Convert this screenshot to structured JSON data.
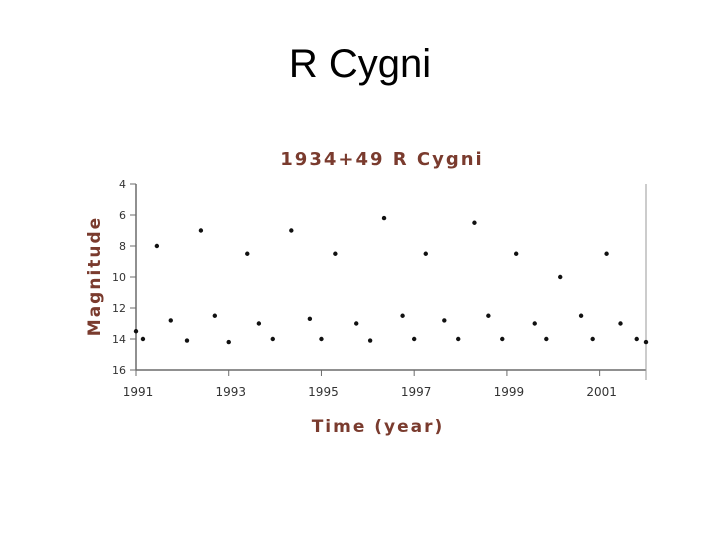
{
  "slide": {
    "title": "R Cygni"
  },
  "colors": {
    "text_accent": "#7a3b2e",
    "axis": "#6b6b6b",
    "data": "#111111"
  },
  "chart_data": {
    "type": "scatter",
    "title": "1934+49 R Cygni",
    "xlabel": "Time (year)",
    "ylabel": "Magnitude",
    "xlim": [
      1991,
      2002
    ],
    "ylim": [
      16,
      4
    ],
    "y_inverted": true,
    "x_ticks": [
      "1991",
      "1993",
      "1995",
      "1997",
      "1999",
      "2001"
    ],
    "y_ticks": [
      "4",
      "6",
      "8",
      "10",
      "12",
      "14",
      "16"
    ],
    "grid": false,
    "series": [
      {
        "x": [
          1991.0,
          1991.15,
          1991.45,
          1991.75,
          1992.1,
          1992.4,
          1992.7,
          1993.0,
          1993.4,
          1993.65,
          1993.95,
          1994.35,
          1994.75,
          1995.0,
          1995.3,
          1995.75,
          1996.05,
          1996.35,
          1996.75,
          1997.0,
          1997.25,
          1997.65,
          1997.95,
          1998.3,
          1998.6,
          1998.9,
          1999.2,
          1999.6,
          1999.85,
          2000.15,
          2000.6,
          2000.85,
          2001.15,
          2001.45,
          2001.8,
          2002.0
        ],
        "y": [
          13.5,
          14.0,
          8.0,
          12.8,
          14.1,
          7.0,
          12.5,
          14.2,
          8.5,
          13.0,
          14.0,
          7.0,
          12.7,
          14.0,
          8.5,
          13.0,
          14.1,
          6.2,
          12.5,
          14.0,
          8.5,
          12.8,
          14.0,
          6.5,
          12.5,
          14.0,
          8.5,
          13.0,
          14.0,
          10.0,
          12.5,
          14.0,
          8.5,
          13.0,
          14.0,
          14.2
        ]
      }
    ]
  }
}
